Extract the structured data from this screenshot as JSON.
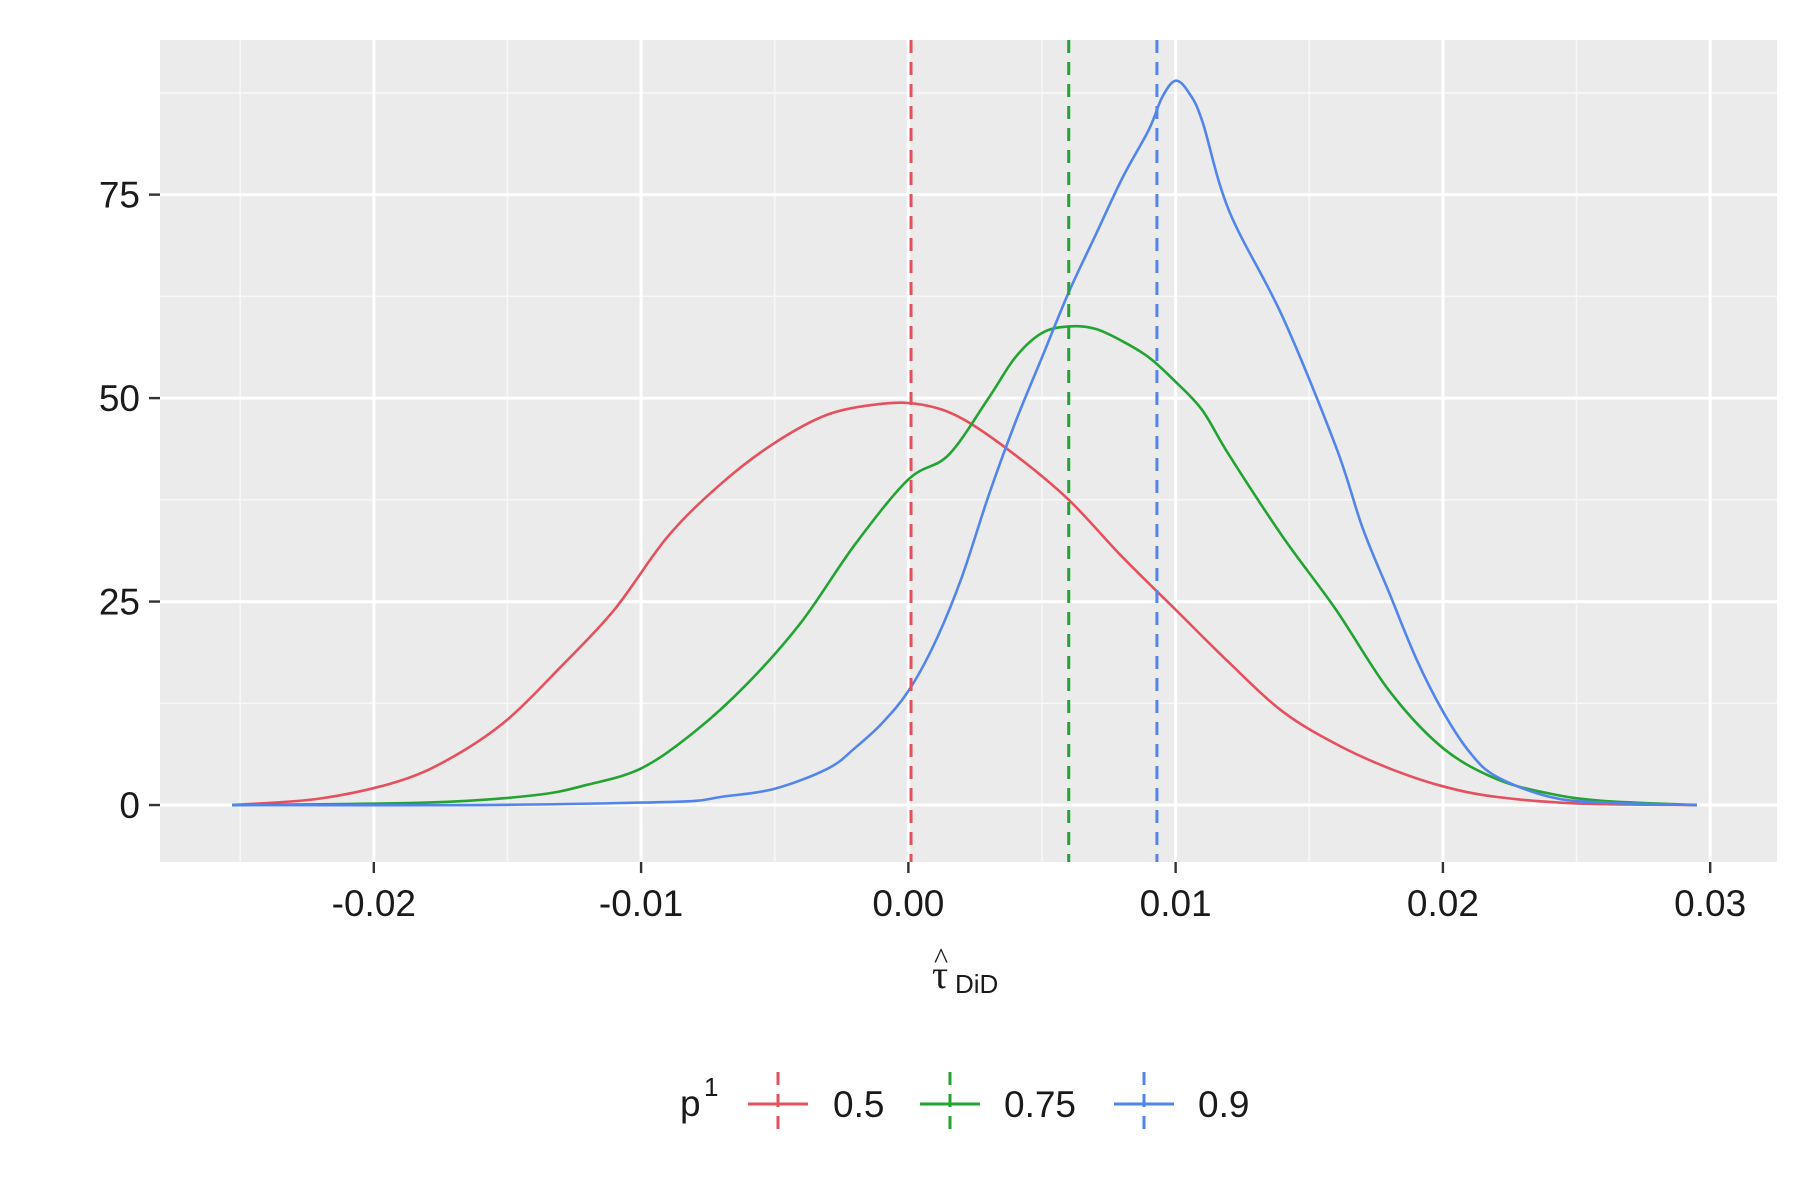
{
  "chart_data": {
    "type": "line",
    "subtype": "density",
    "title": "",
    "xlabel": {
      "main": "τ",
      "accent": "^",
      "subscript": "DiD"
    },
    "ylabel": "",
    "xlim": [
      -0.028,
      0.0325
    ],
    "ylim": [
      -7,
      94
    ],
    "x_ticks": [
      -0.02,
      -0.01,
      0.0,
      0.01,
      0.02,
      0.03
    ],
    "x_tick_labels": [
      "-0.02",
      "-0.01",
      "0.00",
      "0.01",
      "0.02",
      "0.03"
    ],
    "y_ticks": [
      0,
      25,
      50,
      75
    ],
    "y_tick_labels": [
      "0",
      "25",
      "50",
      "75"
    ],
    "grid": true,
    "legend": {
      "title": "p",
      "title_superscript": "1",
      "placement": "bottom",
      "entries": [
        "0.5",
        "0.75",
        "0.9"
      ]
    },
    "series": [
      {
        "name": "0.5",
        "color": "#E5505E",
        "mean_line": 0.0001,
        "x": [
          -0.0253,
          -0.022,
          -0.019,
          -0.017,
          -0.015,
          -0.013,
          -0.011,
          -0.009,
          -0.007,
          -0.005,
          -0.003,
          -0.001,
          0.0005,
          0.002,
          0.004,
          0.006,
          0.008,
          0.01,
          0.012,
          0.014,
          0.016,
          0.018,
          0.02,
          0.022,
          0.025,
          0.0295
        ],
        "y": [
          0,
          0.8,
          3,
          6,
          10.5,
          17,
          24,
          33,
          39.5,
          44.5,
          48,
          49.3,
          49.2,
          47.5,
          43,
          37.5,
          30.5,
          24,
          17.5,
          11.5,
          7.5,
          4.5,
          2.3,
          1,
          0.2,
          0
        ]
      },
      {
        "name": "0.75",
        "color": "#23A332",
        "mean_line": 0.006,
        "x": [
          -0.0253,
          -0.018,
          -0.014,
          -0.012,
          -0.01,
          -0.008,
          -0.006,
          -0.004,
          -0.002,
          0.0,
          0.0015,
          0.003,
          0.004,
          0.005,
          0.006,
          0.007,
          0.008,
          0.009,
          0.01,
          0.011,
          0.012,
          0.014,
          0.016,
          0.018,
          0.02,
          0.022,
          0.024,
          0.026,
          0.0295
        ],
        "y": [
          0,
          0.3,
          1.2,
          2.5,
          4.5,
          9,
          15,
          22.5,
          32,
          40,
          43,
          50,
          55,
          58,
          58.8,
          58.5,
          57,
          55,
          52,
          48.5,
          43,
          33,
          24,
          14,
          7,
          3.2,
          1.4,
          0.5,
          0
        ]
      },
      {
        "name": "0.9",
        "color": "#5285EC",
        "mean_line": 0.0093,
        "x": [
          -0.0253,
          -0.016,
          -0.01,
          -0.008,
          -0.007,
          -0.005,
          -0.003,
          -0.002,
          -0.001,
          0.0,
          0.001,
          0.002,
          0.003,
          0.004,
          0.005,
          0.006,
          0.007,
          0.008,
          0.009,
          0.0095,
          0.01,
          0.0105,
          0.011,
          0.012,
          0.014,
          0.016,
          0.017,
          0.018,
          0.019,
          0.02,
          0.021,
          0.022,
          0.024,
          0.026,
          0.0295
        ],
        "y": [
          0,
          0,
          0.3,
          0.5,
          1,
          2,
          4.5,
          7,
          10,
          14,
          20,
          28,
          38,
          47,
          55,
          63,
          70,
          77,
          83,
          87,
          89,
          87.5,
          84,
          73,
          60,
          44,
          34,
          26,
          18,
          11.5,
          6.5,
          3.5,
          1,
          0.3,
          0
        ]
      }
    ]
  }
}
